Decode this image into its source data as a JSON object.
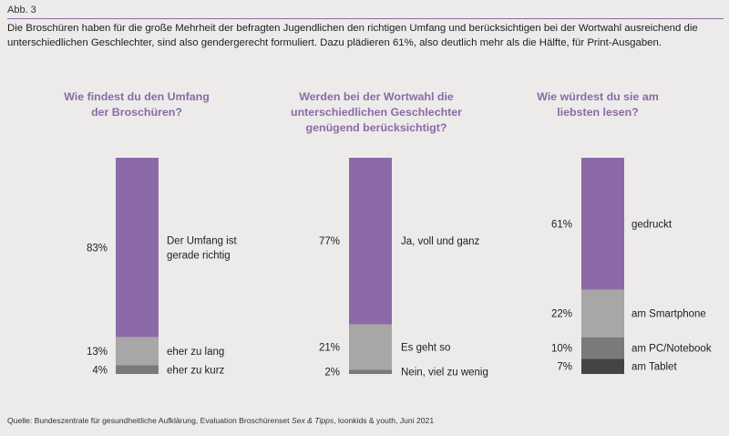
{
  "figure_label": "Abb. 3",
  "intro": "Die Broschüren haben für die große Mehrheit der befragten Jugendlichen den richtigen Umfang und berücksichtigen bei der Wortwahl ausreichend die unterschiedlichen Geschlechter, sind also gendergerecht formuliert. Dazu plädieren 61%, also deutlich mehr als die Hälfte, für Print-Ausgaben.",
  "source": {
    "prefix": "Quelle: Bundeszentrale für gesundheitliche Aufklärung, Evaluation Broschürenset ",
    "italic": "Sex & Tipps",
    "suffix": ", loonkids & youth, Juni 2021"
  },
  "colors": {
    "accent": "#8b6aa7",
    "segments": [
      "#8b6aa7",
      "#a7a7a7",
      "#7a7a7a",
      "#444444"
    ]
  },
  "chart_data": [
    {
      "type": "bar",
      "stacked": true,
      "title": "Wie findest du den Umfang der Broschüren?",
      "segments": [
        {
          "value": 83,
          "label": "83%",
          "category": "Der Umfang ist gerade richtig"
        },
        {
          "value": 13,
          "label": "13%",
          "category": "eher zu lang"
        },
        {
          "value": 4,
          "label": "4%",
          "category": "eher zu kurz"
        }
      ]
    },
    {
      "type": "bar",
      "stacked": true,
      "title": "Werden bei der Wortwahl die unterschiedlichen Geschlechter genügend berücksichtigt?",
      "segments": [
        {
          "value": 77,
          "label": "77%",
          "category": "Ja, voll und ganz"
        },
        {
          "value": 21,
          "label": "21%",
          "category": "Es geht so"
        },
        {
          "value": 2,
          "label": "2%",
          "category": "Nein, viel zu wenig"
        }
      ]
    },
    {
      "type": "bar",
      "stacked": true,
      "title": "Wie würdest du sie am liebsten lesen?",
      "segments": [
        {
          "value": 61,
          "label": "61%",
          "category": "gedruckt"
        },
        {
          "value": 22,
          "label": "22%",
          "category": "am Smartphone"
        },
        {
          "value": 10,
          "label": "10%",
          "category": "am PC/Notebook"
        },
        {
          "value": 7,
          "label": "7%",
          "category": "am Tablet"
        }
      ]
    }
  ]
}
